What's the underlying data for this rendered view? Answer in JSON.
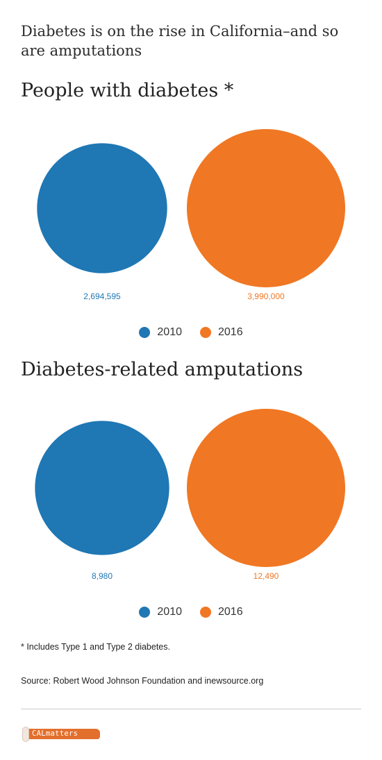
{
  "headline": "Diabetes is on the rise in California–and so are amputations",
  "colors": {
    "series_2010": "#1f77b4",
    "series_2016": "#f07723"
  },
  "chart_data": [
    {
      "type": "bubble",
      "title": "People with diabetes *",
      "categories": [
        "2010",
        "2016"
      ],
      "values": [
        2694595,
        3990000
      ],
      "value_labels": [
        "2,694,595",
        "3,990,000"
      ],
      "legend": [
        "2010",
        "2016"
      ],
      "legend_placement": "bottom-center",
      "grid": false
    },
    {
      "type": "bubble",
      "title": "Diabetes-related amputations",
      "categories": [
        "2010",
        "2016"
      ],
      "values": [
        8980,
        12490
      ],
      "value_labels": [
        "8,980",
        "12,490"
      ],
      "legend": [
        "2010",
        "2016"
      ],
      "legend_placement": "bottom-center",
      "grid": false
    }
  ],
  "footnote": "* Includes Type 1 and Type 2 diabetes.",
  "source": "Source: Robert Wood Johnson Foundation and inewsource.org",
  "logo": {
    "text": "CALmatters"
  }
}
